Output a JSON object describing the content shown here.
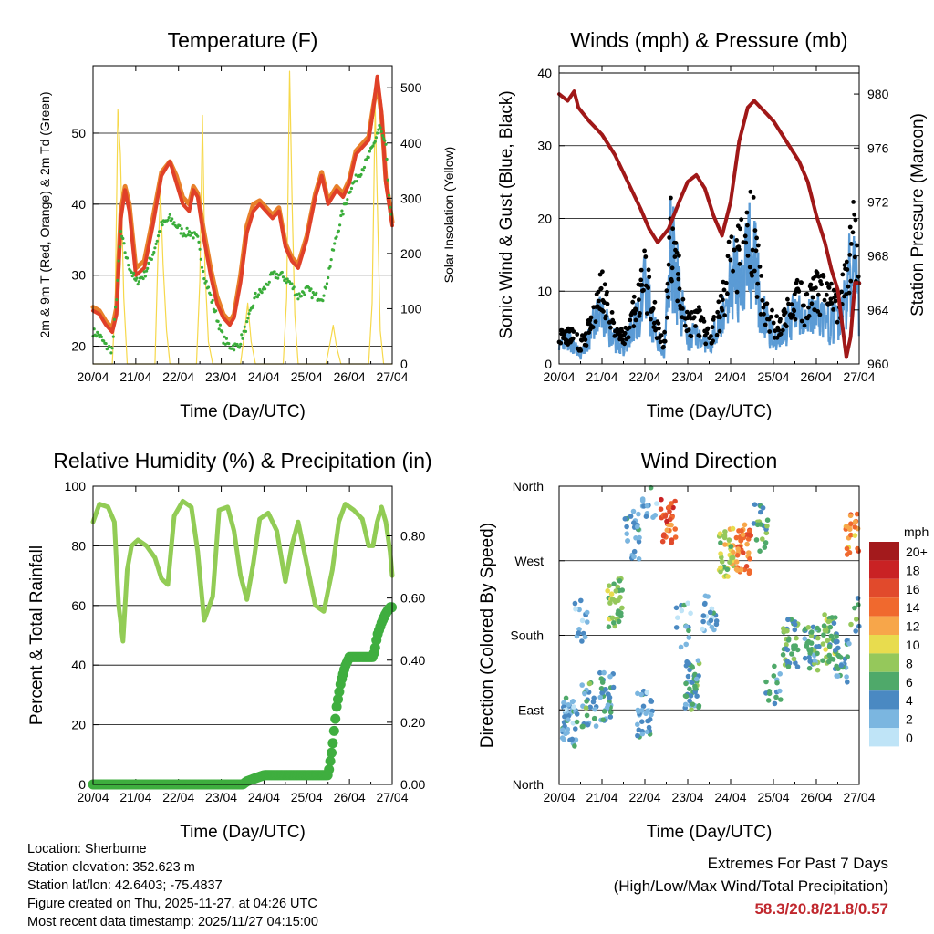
{
  "colors": {
    "temp2m": "#e04028",
    "temp9m": "#e8802a",
    "dew": "#3aad3a",
    "solar": "#f6d84a",
    "wind": "#5b9bd5",
    "gust": "#000000",
    "pressure": "#a01818",
    "rh": "#92cc55",
    "precip": "#3fae3f",
    "extremes": "#c0272d"
  },
  "info": {
    "location": "Location: Sherburne",
    "elevation": "Station elevation: 352.623 m",
    "latlon": "Station lat/lon: 42.6403; -75.4837",
    "created": "Figure created on Thu, 2025-11-27, at 04:26 UTC",
    "latest": "Most recent data timestamp: 2025/11/27 04:15:00"
  },
  "extremes": {
    "line1": "Extremes For Past 7 Days",
    "line2": "(High/Low/Max Wind/Total Precipitation)",
    "values": "58.3/20.8/21.8/0.57"
  },
  "chart_data": [
    {
      "id": "temperature",
      "type": "line",
      "title": "Temperature (F)",
      "xlabel": "Time (Day/UTC)",
      "ylabel": "2m & 9m T (Red, Orange) & 2m Td (Green)",
      "y2label": "Solar Insolation (Yellow)",
      "xlim": [
        0,
        7
      ],
      "ylim": [
        17.5,
        59.5
      ],
      "y2lim": [
        0,
        540
      ],
      "xticks": [
        "20/04",
        "21/04",
        "22/04",
        "23/04",
        "24/04",
        "25/04",
        "26/04",
        "27/04"
      ],
      "yticks": [
        20,
        30,
        40,
        50
      ],
      "y2ticks": [
        0,
        100,
        200,
        300,
        400,
        500
      ],
      "series": [
        {
          "name": "2m T",
          "color": "temp2m",
          "x": [
            0,
            0.15,
            0.3,
            0.45,
            0.55,
            0.65,
            0.75,
            0.85,
            1.0,
            1.2,
            1.4,
            1.6,
            1.8,
            1.95,
            2.1,
            2.25,
            2.35,
            2.45,
            2.6,
            2.75,
            2.9,
            3.05,
            3.2,
            3.3,
            3.45,
            3.6,
            3.75,
            3.9,
            4.05,
            4.2,
            4.35,
            4.5,
            4.65,
            4.8,
            5.0,
            5.2,
            5.35,
            5.5,
            5.7,
            5.85,
            6.0,
            6.15,
            6.3,
            6.45,
            6.55,
            6.65,
            6.75,
            6.85,
            6.95,
            7.0
          ],
          "y": [
            25,
            24.5,
            23,
            22,
            24.5,
            38,
            42,
            39,
            30,
            31,
            37,
            44,
            46,
            43,
            40,
            39,
            42,
            41,
            35,
            30,
            26,
            24,
            23,
            24,
            29,
            36,
            39,
            40,
            39,
            38,
            39,
            34,
            32,
            31,
            35,
            41,
            44,
            40,
            42,
            41,
            43,
            47,
            48,
            49,
            53,
            58,
            53,
            43,
            39,
            37
          ]
        },
        {
          "name": "9m T",
          "color": "temp9m",
          "x": [
            0,
            0.15,
            0.3,
            0.45,
            0.55,
            0.65,
            0.75,
            0.85,
            1.0,
            1.2,
            1.4,
            1.6,
            1.8,
            1.95,
            2.1,
            2.25,
            2.35,
            2.45,
            2.6,
            2.75,
            2.9,
            3.05,
            3.2,
            3.3,
            3.45,
            3.6,
            3.75,
            3.9,
            4.05,
            4.2,
            4.35,
            4.5,
            4.65,
            4.8,
            5.0,
            5.2,
            5.35,
            5.5,
            5.7,
            5.85,
            6.0,
            6.15,
            6.3,
            6.45,
            6.55,
            6.65,
            6.75,
            6.85,
            6.95,
            7.0
          ],
          "y": [
            25.5,
            25,
            23.5,
            22.5,
            25.5,
            39,
            42.5,
            40,
            31,
            32,
            38,
            44.5,
            46,
            44,
            41,
            40,
            42.5,
            41.5,
            36,
            31,
            27,
            24.5,
            23.5,
            24.5,
            30,
            37,
            40,
            40.5,
            39.5,
            38.5,
            39.5,
            34.5,
            32.5,
            31.5,
            35.5,
            41.5,
            44.5,
            40.5,
            42.5,
            41.5,
            43.5,
            47.5,
            48.5,
            49.5,
            53.5,
            57,
            52.5,
            43.5,
            39.5,
            37.5
          ]
        },
        {
          "name": "2m Td",
          "color": "dew",
          "x": [
            0,
            0.15,
            0.3,
            0.45,
            0.55,
            0.65,
            0.8,
            1.0,
            1.2,
            1.4,
            1.6,
            1.8,
            1.95,
            2.1,
            2.3,
            2.45,
            2.6,
            2.75,
            2.9,
            3.05,
            3.2,
            3.4,
            3.6,
            3.8,
            4.0,
            4.2,
            4.4,
            4.6,
            4.8,
            5.0,
            5.2,
            5.4,
            5.6,
            5.8,
            6.0,
            6.2,
            6.4,
            6.55,
            6.7,
            6.85,
            6.95,
            7.0
          ],
          "y": [
            22,
            21.5,
            20,
            19.5,
            27,
            36,
            32,
            29,
            30,
            33,
            37,
            38,
            37,
            36,
            36,
            35,
            30,
            27,
            24,
            21,
            20,
            20,
            23,
            27,
            28,
            30,
            30,
            29,
            27,
            28,
            27,
            27,
            33,
            38,
            42,
            44,
            46,
            48,
            51,
            48,
            39,
            37
          ]
        },
        {
          "name": "Solar",
          "color": "solar",
          "axis": "y2",
          "x": [
            0,
            0.45,
            0.52,
            0.58,
            0.64,
            0.72,
            0.8,
            1.0,
            1.45,
            1.52,
            1.58,
            1.64,
            1.72,
            1.8,
            2.0,
            2.42,
            2.5,
            2.56,
            2.62,
            2.7,
            2.8,
            3.0,
            3.45,
            3.55,
            3.62,
            3.7,
            3.8,
            4.0,
            4.45,
            4.53,
            4.6,
            4.66,
            4.72,
            4.8,
            5.0,
            5.45,
            5.55,
            5.62,
            5.7,
            5.8,
            6.0,
            6.45,
            6.53,
            6.6,
            6.66,
            6.72,
            6.8,
            7.0
          ],
          "y": [
            0,
            0,
            120,
            460,
            380,
            120,
            0,
            0,
            0,
            200,
            310,
            180,
            60,
            0,
            0,
            0,
            150,
            450,
            170,
            40,
            0,
            0,
            0,
            60,
            110,
            40,
            0,
            0,
            0,
            120,
            530,
            280,
            90,
            0,
            0,
            0,
            40,
            70,
            30,
            0,
            0,
            0,
            110,
            470,
            260,
            60,
            0,
            0
          ]
        }
      ]
    },
    {
      "id": "winds",
      "type": "scatter",
      "title": "Winds (mph) & Pressure (mb)",
      "xlabel": "Time (Day/UTC)",
      "ylabel": "Sonic Wind & Gust (Blue, Black)",
      "y2label": "Station Pressure (Maroon)",
      "xlim": [
        0,
        7
      ],
      "ylim": [
        0,
        41
      ],
      "y2lim": [
        960,
        982.1
      ],
      "xticks": [
        "20/04",
        "21/04",
        "22/04",
        "23/04",
        "24/04",
        "25/04",
        "26/04",
        "27/04"
      ],
      "yticks": [
        0,
        10,
        20,
        30,
        40
      ],
      "y2ticks": [
        960,
        964,
        968,
        972,
        976,
        980
      ],
      "series": [
        {
          "name": "Sonic Wind",
          "color": "wind",
          "x": [
            0,
            0.25,
            0.5,
            0.75,
            1.0,
            1.25,
            1.5,
            1.75,
            2.0,
            2.25,
            2.45,
            2.6,
            2.75,
            3.0,
            3.25,
            3.5,
            3.75,
            4.0,
            4.25,
            4.5,
            4.75,
            5.0,
            5.25,
            5.5,
            5.75,
            6.0,
            6.25,
            6.5,
            6.7,
            6.85,
            7.0
          ],
          "y": [
            2,
            3,
            1,
            4,
            7,
            3,
            2,
            5,
            9,
            4,
            1,
            15,
            10,
            3,
            4,
            2,
            5,
            10,
            11,
            14,
            6,
            3,
            4,
            6,
            5,
            6,
            5,
            5,
            8,
            14,
            7
          ]
        },
        {
          "name": "Gust",
          "color": "gust",
          "x": [
            0,
            0.25,
            0.5,
            0.75,
            1.0,
            1.25,
            1.5,
            1.75,
            2.0,
            2.25,
            2.45,
            2.6,
            2.75,
            3.0,
            3.25,
            3.5,
            3.75,
            4.0,
            4.25,
            4.5,
            4.75,
            5.0,
            5.25,
            5.5,
            5.75,
            6.0,
            6.25,
            6.5,
            6.7,
            6.85,
            7.0
          ],
          "y": [
            4,
            5,
            3,
            6,
            12,
            6,
            4,
            8,
            14,
            7,
            3,
            21,
            16,
            6,
            7,
            4,
            8,
            17,
            18,
            22,
            10,
            6,
            7,
            11,
            9,
            12,
            10,
            9,
            13,
            22,
            12
          ]
        },
        {
          "name": "Pressure",
          "color": "pressure",
          "axis": "y2",
          "x": [
            0,
            0.2,
            0.35,
            0.45,
            0.7,
            1.0,
            1.3,
            1.6,
            1.9,
            2.1,
            2.3,
            2.55,
            2.8,
            3.0,
            3.2,
            3.4,
            3.6,
            3.8,
            4.0,
            4.2,
            4.4,
            4.55,
            4.7,
            4.85,
            5.0,
            5.2,
            5.4,
            5.6,
            5.8,
            6.0,
            6.2,
            6.35,
            6.5,
            6.6,
            6.7,
            6.8,
            6.9,
            7.0
          ],
          "y": [
            980,
            979.5,
            980.2,
            979,
            978,
            977,
            975.5,
            973.5,
            971.5,
            970,
            969,
            970,
            972,
            973.5,
            974,
            973,
            971,
            969.5,
            972,
            976.5,
            979,
            979.5,
            979,
            978.5,
            978,
            977,
            976,
            975,
            973.5,
            971,
            969,
            967,
            965.5,
            963,
            960.5,
            962,
            966,
            966
          ]
        }
      ]
    },
    {
      "id": "humidity",
      "type": "line",
      "title": "Relative Humidity (%) & Precipitation (in)",
      "xlabel": "Time (Day/UTC)",
      "ylabel": "Percent & Total Rainfall",
      "xlim": [
        0,
        7
      ],
      "ylim": [
        0,
        100
      ],
      "y2lim": [
        0,
        0.96
      ],
      "xticks": [
        "20/04",
        "21/04",
        "22/04",
        "23/04",
        "24/04",
        "25/04",
        "26/04",
        "27/04"
      ],
      "yticks": [
        0,
        20,
        40,
        60,
        80,
        100
      ],
      "y2ticks": [
        0.0,
        0.2,
        0.4,
        0.6,
        0.8
      ],
      "series": [
        {
          "name": "RH",
          "color": "rh",
          "x": [
            0,
            0.15,
            0.35,
            0.5,
            0.6,
            0.7,
            0.8,
            0.9,
            1.05,
            1.25,
            1.45,
            1.6,
            1.75,
            1.9,
            2.1,
            2.3,
            2.45,
            2.6,
            2.8,
            2.95,
            3.15,
            3.3,
            3.45,
            3.6,
            3.75,
            3.9,
            4.1,
            4.3,
            4.5,
            4.65,
            4.8,
            5.0,
            5.2,
            5.4,
            5.6,
            5.75,
            5.9,
            6.1,
            6.3,
            6.45,
            6.55,
            6.65,
            6.75,
            6.85,
            6.95,
            7.0
          ],
          "y": [
            88,
            94,
            93,
            88,
            60,
            48,
            72,
            80,
            82,
            80,
            76,
            69,
            67,
            90,
            95,
            93,
            78,
            55,
            63,
            92,
            93,
            85,
            70,
            62,
            74,
            89,
            91,
            85,
            68,
            80,
            88,
            74,
            60,
            58,
            72,
            88,
            94,
            92,
            89,
            80,
            80,
            88,
            93,
            88,
            78,
            70
          ]
        },
        {
          "name": "Total Precipitation",
          "color": "precip",
          "axis": "y2",
          "x": [
            0,
            3.5,
            3.6,
            3.8,
            4.0,
            5.5,
            5.6,
            5.7,
            5.8,
            5.9,
            6.0,
            6.3,
            6.55,
            6.6,
            6.65,
            6.75,
            6.85,
            6.95,
            7.0
          ],
          "y": [
            0,
            0,
            0.01,
            0.02,
            0.03,
            0.03,
            0.12,
            0.25,
            0.33,
            0.38,
            0.41,
            0.41,
            0.41,
            0.44,
            0.48,
            0.52,
            0.55,
            0.57,
            0.57
          ]
        }
      ]
    },
    {
      "id": "direction",
      "type": "scatter",
      "title": "Wind Direction",
      "xlabel": "Time (Day/UTC)",
      "ylabel": "Direction (Colored By Speed)",
      "xlim": [
        0,
        7
      ],
      "ylim": [
        0,
        360
      ],
      "xticks": [
        "20/04",
        "21/04",
        "22/04",
        "23/04",
        "24/04",
        "25/04",
        "26/04",
        "27/04"
      ],
      "yticks": [
        "North",
        "East",
        "South",
        "West",
        "North"
      ],
      "ytick_values": [
        0,
        90,
        180,
        270,
        360
      ],
      "legend": {
        "title": "mph",
        "labels": [
          "20+",
          "18",
          "16",
          "14",
          "12",
          "10",
          "8",
          "6",
          "4",
          "2",
          "0"
        ],
        "colors": [
          "#a31a1c",
          "#c92224",
          "#e14a2c",
          "#f0692e",
          "#f7a64a",
          "#e8dc4e",
          "#95c85b",
          "#4fa96a",
          "#4a89c2",
          "#7bb6e0",
          "#bfe4f7"
        ]
      },
      "clusters": [
        {
          "x": 0.25,
          "dir": 75,
          "speed": 3,
          "n": 45
        },
        {
          "x": 0.7,
          "dir": 95,
          "speed": 5,
          "n": 25
        },
        {
          "x": 0.5,
          "dir": 200,
          "speed": 2,
          "n": 15
        },
        {
          "x": 1.3,
          "dir": 220,
          "speed": 8,
          "n": 35
        },
        {
          "x": 1.1,
          "dir": 105,
          "speed": 4,
          "n": 35
        },
        {
          "x": 1.7,
          "dir": 300,
          "speed": 3,
          "n": 25
        },
        {
          "x": 2.0,
          "dir": 85,
          "speed": 3,
          "n": 35
        },
        {
          "x": 2.1,
          "dir": 350,
          "speed": 3,
          "n": 15
        },
        {
          "x": 2.55,
          "dir": 318,
          "speed": 15,
          "n": 30
        },
        {
          "x": 2.9,
          "dir": 190,
          "speed": 3,
          "n": 15
        },
        {
          "x": 3.1,
          "dir": 120,
          "speed": 5,
          "n": 40
        },
        {
          "x": 3.5,
          "dir": 210,
          "speed": 3,
          "n": 20
        },
        {
          "x": 3.9,
          "dir": 280,
          "speed": 9,
          "n": 40
        },
        {
          "x": 4.3,
          "dir": 285,
          "speed": 14,
          "n": 40
        },
        {
          "x": 4.7,
          "dir": 310,
          "speed": 6,
          "n": 20
        },
        {
          "x": 5.0,
          "dir": 120,
          "speed": 5,
          "n": 15
        },
        {
          "x": 5.4,
          "dir": 170,
          "speed": 6,
          "n": 40
        },
        {
          "x": 5.9,
          "dir": 165,
          "speed": 5,
          "n": 40
        },
        {
          "x": 6.3,
          "dir": 175,
          "speed": 7,
          "n": 40
        },
        {
          "x": 6.6,
          "dir": 150,
          "speed": 4,
          "n": 25
        },
        {
          "x": 6.85,
          "dir": 300,
          "speed": 13,
          "n": 25
        },
        {
          "x": 6.95,
          "dir": 210,
          "speed": 6,
          "n": 12
        }
      ]
    }
  ]
}
